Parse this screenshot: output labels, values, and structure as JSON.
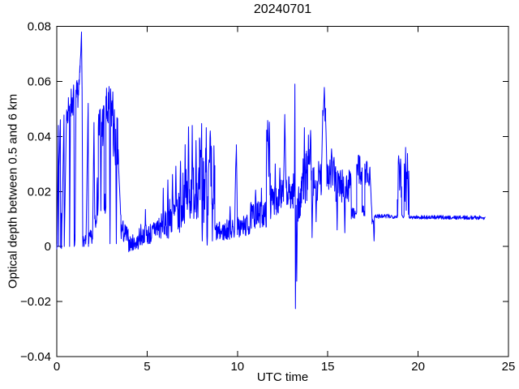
{
  "figure": {
    "background": "#ffffff"
  },
  "chart_data": {
    "type": "line",
    "title": "20240701",
    "xlabel": "UTC time",
    "ylabel": "Optical depth between 0.5 and 6 km",
    "xlim": [
      0,
      25
    ],
    "ylim": [
      -0.04,
      0.08
    ],
    "xticks": [
      0,
      5,
      10,
      15,
      20,
      25
    ],
    "xtick_labels": [
      "0",
      "5",
      "10",
      "15",
      "20",
      "25"
    ],
    "yticks": [
      -0.04,
      -0.02,
      0,
      0.02,
      0.04,
      0.06,
      0.08
    ],
    "ytick_labels": [
      "−0.04",
      "−0.02",
      "0",
      "0.02",
      "0.04",
      "0.06",
      "0.08"
    ],
    "grid": false,
    "legend": null,
    "box": true,
    "line_color": "#0000ff",
    "axis_color": "#000000",
    "series": [
      {
        "name": "optical-depth-0.5-6km",
        "samples_per_hour": 60,
        "seed": 7,
        "segments": [
          [
            "r",
            0.0,
            0.02,
            0.0,
            0.002,
            0.001
          ],
          [
            "r",
            0.02,
            0.09,
            0.002,
            0.044,
            0.0015
          ],
          [
            "r",
            0.09,
            0.1,
            0.044,
            0.0,
            0
          ],
          [
            "r",
            0.1,
            0.13,
            0.0,
            0.03,
            0.001
          ],
          [
            "r",
            0.13,
            0.2,
            0.03,
            0.046,
            0.0015
          ],
          [
            "r",
            0.2,
            0.215,
            0.046,
            0.0,
            0
          ],
          [
            "r",
            0.215,
            0.25,
            0.0,
            0.012,
            0.001
          ],
          [
            "r",
            0.25,
            0.26,
            0.012,
            0.0,
            0
          ],
          [
            "r",
            0.26,
            0.4,
            0.0,
            0.047,
            0.0015
          ],
          [
            "r",
            0.4,
            0.415,
            0.047,
            0.0,
            0
          ],
          [
            "r",
            0.415,
            0.55,
            0.0,
            0.051,
            0.0015
          ],
          [
            "b",
            0.55,
            0.7,
            0.044,
            0.056,
            0.046,
            0.058
          ],
          [
            "r",
            0.7,
            0.71,
            0.05,
            0.0,
            0
          ],
          [
            "r",
            0.71,
            0.76,
            0.0,
            0.052,
            0.001
          ],
          [
            "b",
            0.76,
            0.95,
            0.046,
            0.058,
            0.048,
            0.06
          ],
          [
            "r",
            0.95,
            0.965,
            0.052,
            0.0,
            0
          ],
          [
            "b",
            0.965,
            1.01,
            0.0,
            0.005,
            0.0,
            0.005
          ],
          [
            "r",
            1.01,
            1.06,
            0.002,
            0.048,
            0.001
          ],
          [
            "b",
            1.06,
            1.28,
            0.047,
            0.059,
            0.054,
            0.066
          ],
          [
            "r",
            1.28,
            1.37,
            0.063,
            0.077,
            0.002
          ],
          [
            "r",
            1.37,
            1.4,
            0.077,
            0.058,
            0.002
          ],
          [
            "r",
            1.4,
            1.44,
            0.058,
            0.0,
            0
          ],
          [
            "b",
            1.44,
            1.62,
            0.0,
            0.004,
            0.0,
            0.004
          ],
          [
            "r",
            1.62,
            1.74,
            0.002,
            0.052,
            0.0015
          ],
          [
            "r",
            1.74,
            1.755,
            0.052,
            0.0,
            0
          ],
          [
            "b",
            1.755,
            1.98,
            0.0,
            0.006,
            0.0,
            0.006
          ],
          [
            "r",
            1.98,
            2.06,
            0.002,
            0.045,
            0.001
          ],
          [
            "r",
            2.06,
            2.1,
            0.045,
            0.012,
            0.001
          ],
          [
            "b",
            2.1,
            2.3,
            0.005,
            0.018,
            0.012,
            0.028
          ],
          [
            "b",
            2.3,
            2.62,
            0.034,
            0.054,
            0.036,
            0.055
          ],
          [
            "b",
            2.62,
            2.72,
            0.01,
            0.02,
            0.01,
            0.02
          ],
          [
            "b",
            2.72,
            3.12,
            0.04,
            0.058,
            0.042,
            0.059
          ],
          [
            "b",
            3.12,
            3.42,
            0.032,
            0.052,
            0.024,
            0.046
          ],
          [
            "r",
            3.42,
            3.55,
            0.028,
            0.01,
            0.002
          ],
          [
            "b",
            3.55,
            3.95,
            0.002,
            0.011,
            0.0,
            0.007
          ],
          [
            "b",
            3.95,
            4.55,
            -0.002,
            0.004,
            -0.001,
            0.005
          ],
          [
            "b",
            4.55,
            5.35,
            0.0,
            0.008,
            0.001,
            0.009
          ],
          [
            "b",
            5.35,
            6.2,
            0.002,
            0.012,
            0.003,
            0.013
          ],
          [
            "b",
            6.2,
            6.95,
            0.004,
            0.018,
            0.005,
            0.02
          ],
          [
            "b",
            6.95,
            7.55,
            0.008,
            0.028,
            0.01,
            0.03
          ],
          [
            "b",
            7.55,
            7.9,
            0.01,
            0.032,
            0.01,
            0.032
          ],
          [
            "b",
            7.9,
            8.75,
            0.008,
            0.04,
            0.006,
            0.038
          ],
          [
            "b",
            8.75,
            9.3,
            0.002,
            0.009,
            0.002,
            0.009
          ],
          [
            "b",
            9.3,
            9.85,
            0.002,
            0.01,
            0.003,
            0.01
          ],
          [
            "r",
            9.85,
            9.9,
            0.006,
            0.029,
            0.002
          ],
          [
            "r",
            9.9,
            9.94,
            0.029,
            0.037,
            0.002
          ],
          [
            "r",
            9.94,
            10.0,
            0.037,
            0.006,
            0.002
          ],
          [
            "b",
            10.0,
            10.7,
            0.003,
            0.011,
            0.004,
            0.012
          ],
          [
            "b",
            10.7,
            11.6,
            0.006,
            0.016,
            0.007,
            0.017
          ],
          [
            "b",
            11.6,
            11.82,
            0.018,
            0.044,
            0.016,
            0.04
          ],
          [
            "b",
            11.82,
            12.55,
            0.01,
            0.022,
            0.013,
            0.026
          ],
          [
            "r",
            12.55,
            12.62,
            0.02,
            0.046,
            0.002
          ],
          [
            "r",
            12.62,
            12.7,
            0.046,
            0.02,
            0.002
          ],
          [
            "b",
            12.7,
            13.15,
            0.012,
            0.026,
            0.014,
            0.027
          ],
          [
            "r",
            13.15,
            13.18,
            0.02,
            0.059,
            0.001
          ],
          [
            "r",
            13.18,
            13.21,
            0.059,
            -0.022,
            0
          ],
          [
            "r",
            13.21,
            13.25,
            -0.022,
            0.015,
            0.001
          ],
          [
            "r",
            13.25,
            13.28,
            0.015,
            -0.012,
            0
          ],
          [
            "r",
            13.28,
            13.32,
            -0.012,
            0.012,
            0.001
          ],
          [
            "b",
            13.32,
            13.55,
            0.008,
            0.022,
            0.01,
            0.024
          ],
          [
            "b",
            13.55,
            14.1,
            0.015,
            0.034,
            0.017,
            0.036
          ],
          [
            "r",
            14.1,
            14.13,
            0.02,
            0.004,
            0.001
          ],
          [
            "r",
            14.13,
            14.18,
            0.004,
            0.02,
            0.001
          ],
          [
            "b",
            14.18,
            14.65,
            0.015,
            0.03,
            0.017,
            0.032
          ],
          [
            "r",
            14.65,
            14.72,
            0.026,
            0.046,
            0.002
          ],
          [
            "b",
            14.72,
            14.88,
            0.044,
            0.057,
            0.044,
            0.056
          ],
          [
            "r",
            14.88,
            14.95,
            0.048,
            0.028,
            0.002
          ],
          [
            "b",
            14.95,
            15.45,
            0.02,
            0.034,
            0.019,
            0.032
          ],
          [
            "b",
            15.45,
            16.3,
            0.016,
            0.03,
            0.015,
            0.028
          ],
          [
            "b",
            16.3,
            16.6,
            0.01,
            0.014,
            0.01,
            0.014
          ],
          [
            "b",
            16.6,
            16.9,
            0.022,
            0.033,
            0.022,
            0.033
          ],
          [
            "b",
            16.9,
            17.05,
            0.011,
            0.015,
            0.011,
            0.015
          ],
          [
            "b",
            17.05,
            17.35,
            0.022,
            0.031,
            0.022,
            0.03
          ],
          [
            "r",
            17.35,
            17.45,
            0.024,
            0.011,
            0.001
          ],
          [
            "b",
            17.45,
            17.58,
            0.008,
            0.012,
            0.009,
            0.012
          ],
          [
            "b",
            17.58,
            18.85,
            0.0102,
            0.0118,
            0.0102,
            0.0118
          ],
          [
            "b",
            18.85,
            19.1,
            0.011,
            0.032,
            0.011,
            0.03
          ],
          [
            "b",
            19.1,
            19.22,
            0.0104,
            0.0118,
            0.0104,
            0.0118
          ],
          [
            "b",
            19.22,
            19.5,
            0.011,
            0.035,
            0.011,
            0.033
          ],
          [
            "b",
            19.5,
            23.72,
            0.01,
            0.0114,
            0.0098,
            0.0112
          ]
        ],
        "spikes_up": [
          [
            4.9,
            0.0135
          ],
          [
            5.9,
            0.0212
          ],
          [
            6.15,
            0.0242
          ],
          [
            6.4,
            0.0262
          ],
          [
            6.6,
            0.0292
          ],
          [
            6.85,
            0.031
          ],
          [
            7.1,
            0.037
          ],
          [
            7.3,
            0.0435
          ],
          [
            7.5,
            0.044
          ],
          [
            7.7,
            0.0385
          ],
          [
            8.02,
            0.0447
          ],
          [
            8.27,
            0.0432
          ],
          [
            8.5,
            0.042
          ],
          [
            9.6,
            0.0145
          ],
          [
            11.0,
            0.0205
          ],
          [
            11.33,
            0.0212
          ],
          [
            11.68,
            0.0458
          ],
          [
            11.76,
            0.0452
          ],
          [
            12.1,
            0.03
          ],
          [
            12.35,
            0.0285
          ],
          [
            13.7,
            0.0432
          ],
          [
            13.92,
            0.0405
          ],
          [
            14.05,
            0.0422
          ],
          [
            14.8,
            0.0578
          ],
          [
            15.2,
            0.0355
          ],
          [
            16.7,
            0.0332
          ],
          [
            17.15,
            0.031
          ],
          [
            18.92,
            0.033
          ],
          [
            19.02,
            0.0318
          ],
          [
            19.3,
            0.036
          ],
          [
            19.42,
            0.0338
          ]
        ],
        "spikes_down": [
          [
            2.45,
            0.013
          ],
          [
            2.95,
            0.001
          ],
          [
            3.3,
            0.001
          ],
          [
            8.05,
            0.002
          ],
          [
            8.32,
            0.0005
          ],
          [
            8.62,
            0.002
          ],
          [
            14.35,
            0.009
          ],
          [
            15.52,
            0.006
          ],
          [
            15.95,
            0.005
          ],
          [
            17.56,
            0.002
          ]
        ]
      }
    ]
  }
}
